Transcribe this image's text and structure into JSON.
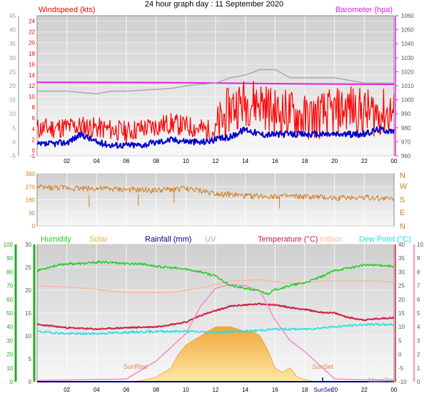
{
  "header": {
    "title": "24 hour graph day : 11 September 2020"
  },
  "colors": {
    "wind_gust": "#ff0000",
    "wind_avg": "#0000cc",
    "wind_dir": "#d27c1e",
    "barometer": "#e020e0",
    "grey_series": "#aaaaaa",
    "humidity": "#22cc22",
    "solar": "#f0b040",
    "rainfall": "#000088",
    "uv": "#f08cd0",
    "temperature": "#cc2244",
    "indoor": "#f5b9a0",
    "dew_point": "#22e0e0",
    "left_axis": "#22aa22",
    "right_axis": "#ff66aa"
  },
  "chart_data": [
    {
      "type": "line",
      "name": "wind",
      "x_ticks": [
        "02",
        "04",
        "06",
        "08",
        "10",
        "12",
        "14",
        "16",
        "18",
        "20",
        "22",
        "00"
      ],
      "left_axis": {
        "label": "Windspeed (kts)",
        "range": [
          -1,
          25
        ],
        "ticks": [
          -1,
          0,
          2,
          4,
          6,
          8,
          10,
          12,
          14,
          16,
          18,
          20,
          22,
          24
        ]
      },
      "outer_axis": {
        "range": [
          -5,
          45
        ],
        "ticks": [
          -5,
          0,
          5,
          10,
          15,
          20,
          25,
          30,
          35,
          40,
          45
        ]
      },
      "right_axis": {
        "label": "Barometer (hpa)",
        "range": [
          960,
          1060
        ],
        "ticks": [
          960,
          970,
          980,
          990,
          1000,
          1010,
          1020,
          1030,
          1040,
          1050,
          1060
        ]
      },
      "barometer": {
        "x": [
          0,
          4,
          8,
          12,
          16,
          20,
          24
        ],
        "y": [
          1012.5,
          1012.4,
          1012.3,
          1012,
          1011.5,
          1011.2,
          1011
        ]
      },
      "grey_series": {
        "x": [
          0,
          2,
          4,
          5,
          6,
          9,
          10,
          12,
          13,
          14,
          15,
          16,
          17,
          18,
          20,
          22,
          24
        ],
        "y": [
          11,
          11,
          10.5,
          11,
          11,
          11.5,
          12,
          12.5,
          13.5,
          14,
          15,
          15,
          13.5,
          13.5,
          13.5,
          12.5,
          12.5
        ]
      },
      "wind_avg": {
        "x": [
          0,
          2,
          3,
          4,
          5,
          7,
          9,
          11,
          13,
          14,
          15,
          16,
          18,
          20,
          22,
          23,
          24
        ],
        "y": [
          1,
          1.5,
          3,
          1.5,
          1,
          1,
          2,
          1.5,
          2.5,
          4,
          3,
          3,
          3,
          3,
          3,
          4,
          3.5
        ]
      },
      "wind_gust": {
        "x": [
          0,
          3,
          6,
          9,
          12,
          13,
          14,
          15,
          16,
          17,
          18,
          20,
          21,
          22,
          23,
          24
        ],
        "y": [
          4,
          4.5,
          3.5,
          5,
          3.5,
          8,
          9,
          9,
          7,
          7,
          6,
          7,
          8,
          7,
          7,
          7
        ]
      }
    },
    {
      "type": "line",
      "name": "wind_direction",
      "left_axis": {
        "range": [
          0,
          360
        ],
        "ticks": [
          0,
          90,
          180,
          270,
          360
        ]
      },
      "right_axis": {
        "ticks": [
          "N",
          "W",
          "S",
          "E",
          "N"
        ]
      },
      "direction": {
        "x": [
          0,
          2,
          4,
          6,
          8,
          10,
          12,
          14,
          16,
          18,
          20,
          22,
          24
        ],
        "y": [
          265,
          262,
          258,
          250,
          245,
          258,
          225,
          205,
          205,
          200,
          192,
          198,
          185
        ]
      }
    },
    {
      "type": "line",
      "name": "weather",
      "x_ticks": [
        "02",
        "04",
        "06",
        "08",
        "10",
        "12",
        "14",
        "16",
        "18",
        "20",
        "22",
        "00"
      ],
      "legend": [
        "Humidity",
        "Solar",
        "Rainfall (mm)",
        "UV",
        "Temperature (°C)",
        "Indoor",
        "Dew Point (°C)"
      ],
      "humidity_axis": {
        "range": [
          0,
          100
        ],
        "ticks": [
          0,
          10,
          20,
          30,
          40,
          50,
          60,
          70,
          80,
          90,
          100
        ]
      },
      "solar_axis": {
        "range": [
          0,
          30
        ],
        "ticks": [
          0,
          5,
          10,
          15,
          20,
          25,
          30
        ]
      },
      "temp_axis": {
        "range": [
          -10,
          40
        ],
        "ticks": [
          -10,
          -5,
          0,
          5,
          10,
          15,
          20,
          25,
          30,
          35,
          40
        ]
      },
      "uv_axis": {
        "range": [
          0,
          10
        ],
        "ticks": [
          0,
          1,
          2,
          3,
          4,
          5,
          6,
          7,
          8,
          9,
          10
        ]
      },
      "humidity": {
        "x": [
          0,
          1,
          2,
          3,
          4,
          5,
          6,
          7,
          8,
          9,
          10,
          11,
          12,
          13,
          14,
          15,
          15.5,
          16,
          17,
          18,
          19,
          20,
          21,
          22,
          23,
          24
        ],
        "y": [
          81,
          84,
          86,
          86,
          87,
          87,
          86,
          86,
          84,
          83,
          82,
          80,
          77,
          70,
          68,
          66,
          64,
          67,
          70,
          72,
          76,
          81,
          83,
          85,
          85,
          84
        ]
      },
      "indoor": {
        "x": [
          0,
          3,
          6,
          9,
          11,
          13,
          15,
          17,
          19,
          21,
          23,
          24
        ],
        "y": [
          21,
          20.5,
          19.5,
          19.5,
          20.5,
          22,
          22.3,
          21.5,
          22,
          22,
          22,
          21.8
        ]
      },
      "temperature": {
        "x": [
          0,
          2,
          4,
          6,
          8,
          10,
          11,
          12,
          13,
          14,
          15,
          16,
          17,
          18,
          19,
          20,
          21,
          22,
          23,
          24
        ],
        "y": [
          12.5,
          11.8,
          11.5,
          11.8,
          12,
          13,
          14.5,
          15.5,
          16.5,
          16.8,
          17,
          16.8,
          16.2,
          15.8,
          15.2,
          15,
          14,
          13.5,
          13.8,
          14
        ]
      },
      "uv": {
        "x": [
          0,
          6,
          8,
          10,
          11,
          12,
          13,
          14,
          15,
          16,
          17,
          18,
          20,
          24
        ],
        "y": [
          0.1,
          0.2,
          1.5,
          3.5,
          5.5,
          6.8,
          7.1,
          7,
          6.6,
          4.5,
          3,
          2.2,
          0.2,
          0.1
        ]
      },
      "dew_point": {
        "x": [
          0,
          2,
          4,
          6,
          8,
          10,
          12,
          14,
          16,
          18,
          20,
          22,
          24
        ],
        "y": [
          11,
          10.5,
          10.5,
          10.8,
          11,
          11,
          10.8,
          11,
          11.5,
          11.5,
          12,
          12.5,
          12.5
        ]
      },
      "solar": {
        "x": [
          6,
          7,
          8,
          9,
          9.5,
          10,
          11,
          12,
          13,
          14,
          14.5,
          15,
          15.5,
          16,
          16.5,
          17,
          17.5,
          18,
          18.5,
          19
        ],
        "y": [
          0,
          0.2,
          1,
          3,
          6,
          8,
          10,
          12,
          12,
          11,
          11,
          10,
          7,
          3,
          2,
          3,
          1,
          0.5,
          0.1,
          0
        ]
      },
      "rainfall": {
        "x": [
          0,
          24
        ],
        "y": [
          0,
          0
        ]
      },
      "annotations": {
        "sunrise": "SunRise",
        "sunset": "SunSet",
        "moonrise": "MoonRise",
        "sunset_tick": "SunSet"
      }
    }
  ]
}
